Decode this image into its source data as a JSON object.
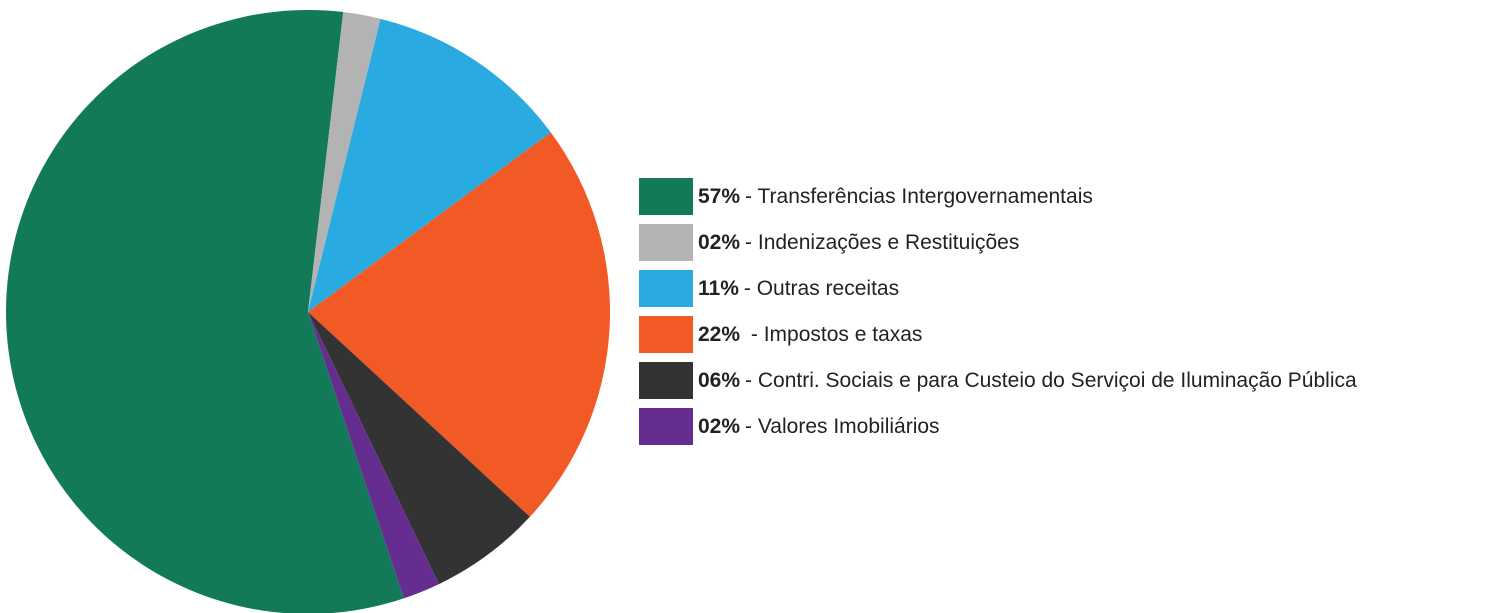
{
  "chart_data": {
    "type": "pie",
    "categories": [
      "- Transferências Intergovernamentais",
      "- Indenizações e Restituições",
      "- Outras receitas",
      " - Impostos e taxas",
      "- Contri. Sociais e para Custeio do Serviçoi de Iluminação Pública",
      "- Valores Imobiliários"
    ],
    "values": [
      57,
      2,
      11,
      22,
      6,
      2
    ],
    "value_labels": [
      "57%",
      "02%",
      "11%",
      "22%",
      "06%",
      "02%"
    ],
    "colors": [
      "#127a59",
      "#b3b3b3",
      "#29abe2",
      "#f15a24",
      "#333333",
      "#662d91"
    ],
    "legend": "right"
  }
}
